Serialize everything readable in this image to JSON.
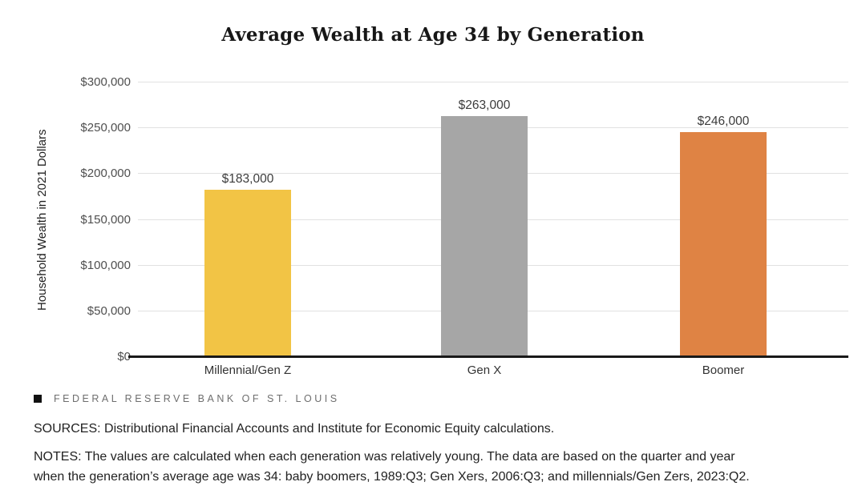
{
  "chart_data": {
    "type": "bar",
    "title": "Average Wealth at Age 34 by Generation",
    "categories": [
      "Millennial/Gen Z",
      "Gen X",
      "Boomer"
    ],
    "values": [
      183000,
      263000,
      246000
    ],
    "value_labels": [
      "$183,000",
      "$263,000",
      "$246,000"
    ],
    "bar_colors": [
      "#F2C445",
      "#A6A6A6",
      "#DF8344"
    ],
    "ylabel": "Household Wealth in 2021 Dollars",
    "xlabel": "",
    "ylim": [
      0,
      300000
    ],
    "ytick_interval": 50000,
    "ytick_labels": [
      "$0",
      "$50,000",
      "$100,000",
      "$150,000",
      "$200,000",
      "$250,000",
      "$300,000"
    ],
    "grid": "horizontal-on",
    "legend": "none"
  },
  "footer": {
    "brand_icon": "square-icon",
    "brand": "FEDERAL RESERVE BANK OF ST. LOUIS",
    "sources": "SOURCES: Distributional Financial Accounts and Institute for Economic Equity calculations.",
    "notes_line1": "NOTES: The values are calculated when each generation was relatively young. The data are based on the quarter and year",
    "notes_line2": "when the generation’s average age was 34: baby boomers, 1989:Q3; Gen Xers, 2006:Q3; and millennials/Gen Zers, 2023:Q2."
  },
  "colors": {
    "gridline": "#e1e1e1",
    "axis_line": "#191919",
    "tick_label": "#4f4f4f",
    "value_label": "#3c3c3c",
    "title": "#171717",
    "brand_text": "#6e6e6e"
  }
}
